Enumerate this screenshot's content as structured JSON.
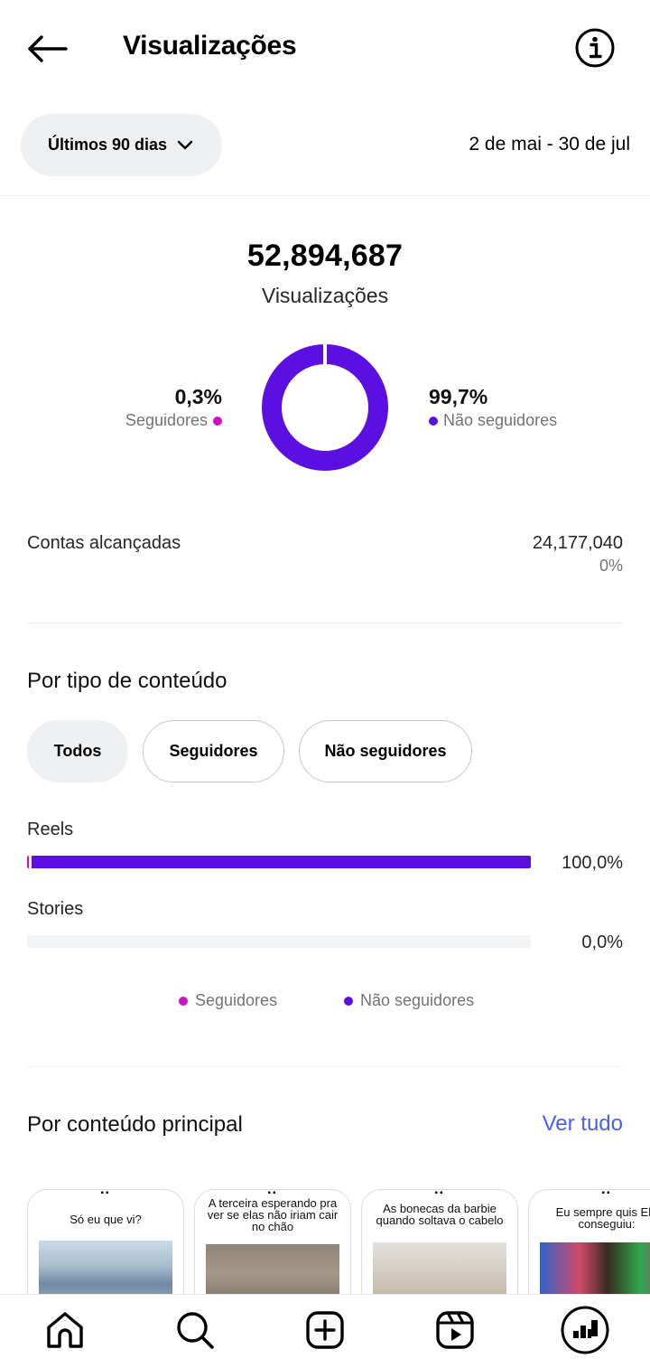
{
  "header": {
    "title": "Visualizações",
    "back_icon": "arrow-left-icon",
    "info_icon": "info-circle-icon"
  },
  "filter": {
    "period_label": "Últimos 90 dias",
    "date_range": "2 de mai - 30 de jul"
  },
  "summary": {
    "total": "52,894,687",
    "label": "Visualizações",
    "followers_pct_text": "0,3%",
    "followers_label": "Seguidores",
    "non_followers_pct_text": "99,7%",
    "non_followers_label": "Não seguidores",
    "followers_fraction": 0.003,
    "non_followers_fraction": 0.997
  },
  "reach": {
    "label": "Contas alcançadas",
    "value": "24,177,040",
    "change": "0%"
  },
  "content_type": {
    "title": "Por tipo de conteúdo",
    "tabs": [
      "Todos",
      "Seguidores",
      "Não seguidores"
    ],
    "rows": [
      {
        "label": "Reels",
        "pct_text": "100,0%",
        "followers_fraction": 0.003,
        "non_followers_fraction": 0.997
      },
      {
        "label": "Stories",
        "pct_text": "0,0%",
        "followers_fraction": 0,
        "non_followers_fraction": 0
      }
    ],
    "legend": {
      "followers": "Seguidores",
      "non_followers": "Não seguidores"
    }
  },
  "top_content": {
    "title": "Por conteúdo principal",
    "see_all": "Ver tudo",
    "items": [
      {
        "caption": "Só eu que vi?"
      },
      {
        "caption": "A terceira esperando pra ver se elas não iriam cair no chão"
      },
      {
        "caption": "As bonecas da barbie quando soltava o cabelo"
      },
      {
        "caption": "Eu sempre quis Ela conseguiu:"
      }
    ]
  },
  "colors": {
    "followers": "#d10fc6",
    "non_followers": "#5b0fe0",
    "link": "#4a5df9"
  },
  "bottom_nav": [
    "home-icon",
    "search-icon",
    "create-icon",
    "reels-icon",
    "dashboard-icon"
  ]
}
